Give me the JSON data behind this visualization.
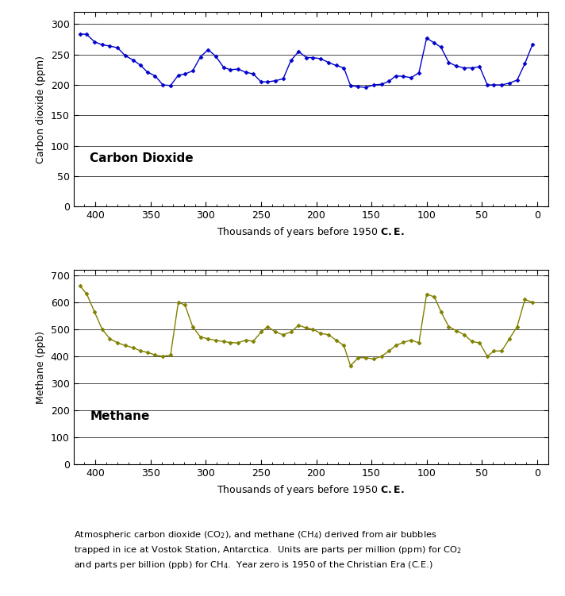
{
  "co2_x": [
    414,
    408,
    401,
    394,
    387,
    380,
    373,
    366,
    359,
    353,
    346,
    339,
    332,
    325,
    319,
    312,
    305,
    298,
    291,
    284,
    278,
    271,
    264,
    257,
    250,
    244,
    237,
    230,
    223,
    216,
    209,
    203,
    196,
    189,
    182,
    175,
    169,
    162,
    155,
    148,
    141,
    134,
    128,
    121,
    114,
    107,
    100,
    93,
    87,
    80,
    73,
    66,
    59,
    52,
    45,
    39,
    32,
    25,
    18,
    11,
    4
  ],
  "co2_y": [
    284,
    283,
    271,
    266,
    264,
    261,
    248,
    241,
    232,
    221,
    215,
    200,
    199,
    216,
    218,
    223,
    246,
    258,
    247,
    229,
    225,
    226,
    221,
    218,
    205,
    205,
    207,
    210,
    240,
    255,
    245,
    245,
    243,
    237,
    232,
    228,
    199,
    197,
    196,
    200,
    201,
    206,
    215,
    214,
    212,
    220,
    277,
    269,
    262,
    237,
    231,
    228,
    228,
    230,
    200,
    200,
    200,
    203,
    208,
    235,
    267
  ],
  "ch4_x": [
    414,
    408,
    401,
    394,
    387,
    380,
    373,
    366,
    359,
    353,
    346,
    339,
    332,
    325,
    319,
    312,
    305,
    298,
    291,
    284,
    278,
    271,
    264,
    257,
    250,
    244,
    237,
    230,
    223,
    216,
    209,
    203,
    196,
    189,
    182,
    175,
    169,
    162,
    155,
    148,
    141,
    134,
    128,
    121,
    114,
    107,
    100,
    93,
    87,
    80,
    73,
    66,
    59,
    52,
    45,
    39,
    32,
    25,
    18,
    11,
    4
  ],
  "ch4_y": [
    660,
    631,
    565,
    500,
    465,
    450,
    440,
    432,
    420,
    415,
    405,
    400,
    405,
    600,
    590,
    510,
    472,
    465,
    459,
    455,
    451,
    450,
    460,
    456,
    490,
    510,
    490,
    480,
    490,
    515,
    505,
    500,
    485,
    480,
    460,
    440,
    365,
    395,
    395,
    390,
    400,
    420,
    440,
    452,
    460,
    450,
    630,
    620,
    565,
    510,
    495,
    480,
    455,
    450,
    400,
    420,
    420,
    465,
    510,
    610,
    600
  ],
  "co2_color": "#0000cc",
  "ch4_color": "#808000",
  "co2_ylabel": "Carbon dioxide (ppm)",
  "ch4_ylabel": "Methane (ppb)",
  "xlabel": "Thousands of years before 1950 C.E.",
  "co2_label": "Carbon Dioxide",
  "ch4_label": "Methane",
  "co2_ylim": [
    0,
    320
  ],
  "ch4_ylim": [
    0,
    720
  ],
  "co2_yticks": [
    0,
    50,
    100,
    150,
    200,
    250,
    300
  ],
  "ch4_yticks": [
    0,
    100,
    200,
    300,
    400,
    500,
    600,
    700
  ],
  "xticks": [
    400,
    350,
    300,
    250,
    200,
    150,
    100,
    50,
    0
  ],
  "xlim": [
    420,
    -10
  ],
  "marker": "D",
  "markersize": 2.5,
  "linewidth": 1.0,
  "bg_color": "#ffffff",
  "label_fontsize": 11,
  "tick_fontsize": 9,
  "axis_label_fontsize": 9
}
